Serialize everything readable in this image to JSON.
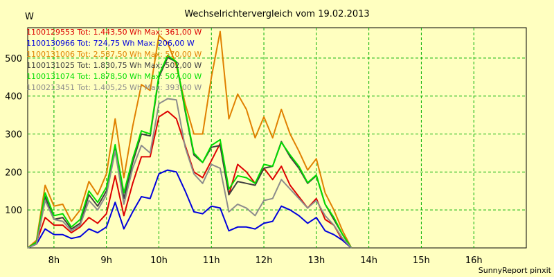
{
  "chart_data": {
    "type": "line",
    "title": "Wechselrichtervergleich vom 19.02.2013",
    "ylabel": "W",
    "xlabel": "",
    "x_range_hours": [
      7.5,
      17.0
    ],
    "ylim": [
      0,
      580
    ],
    "yticks": [
      100,
      200,
      300,
      400,
      500
    ],
    "xticks": [
      {
        "hour": 8,
        "label": "8h"
      },
      {
        "hour": 9,
        "label": "9h"
      },
      {
        "hour": 10,
        "label": "10h"
      },
      {
        "hour": 11,
        "label": "11h"
      },
      {
        "hour": 12,
        "label": "12h"
      },
      {
        "hour": 13,
        "label": "13h"
      },
      {
        "hour": 14,
        "label": "14h"
      },
      {
        "hour": 15,
        "label": "15h"
      },
      {
        "hour": 16,
        "label": "16h"
      }
    ],
    "grid": true,
    "x": [
      7.5,
      7.667,
      7.833,
      8.0,
      8.167,
      8.333,
      8.5,
      8.667,
      8.833,
      9.0,
      9.167,
      9.333,
      9.5,
      9.667,
      9.833,
      10.0,
      10.167,
      10.333,
      10.5,
      10.667,
      10.833,
      11.0,
      11.167,
      11.333,
      11.5,
      11.667,
      11.833,
      12.0,
      12.167,
      12.333,
      12.5,
      12.667,
      12.833,
      13.0,
      13.167,
      13.333,
      13.5,
      13.667,
      13.833,
      14.0,
      14.167,
      14.333,
      14.5,
      14.667,
      14.833,
      15.0,
      15.167,
      15.333,
      15.5,
      15.667,
      15.833,
      16.0,
      16.167,
      16.333,
      16.5,
      16.667,
      16.833,
      17.0
    ],
    "series": [
      {
        "name": "1100129553",
        "label": "1100129553 Tot: 1.443,50 Wh Max: 361,00 W",
        "color": "#dd0000",
        "values": [
          0,
          15,
          80,
          60,
          60,
          40,
          55,
          80,
          65,
          90,
          190,
          85,
          170,
          240,
          240,
          345,
          360,
          340,
          270,
          200,
          185,
          230,
          275,
          140,
          220,
          200,
          170,
          210,
          180,
          215,
          165,
          135,
          105,
          130,
          75,
          60,
          20,
          0,
          null,
          null,
          null,
          null,
          null,
          null,
          null,
          null,
          null,
          null,
          null,
          null,
          null,
          null,
          null,
          null,
          null,
          null,
          null,
          null
        ]
      },
      {
        "name": "1100130966",
        "label": "1100130966 Tot: 724,75 Wh Max: 206,00 W",
        "color": "#0000dd",
        "values": [
          0,
          10,
          50,
          35,
          35,
          25,
          30,
          50,
          40,
          55,
          120,
          50,
          95,
          135,
          130,
          195,
          205,
          200,
          150,
          95,
          90,
          110,
          105,
          45,
          55,
          55,
          50,
          65,
          70,
          110,
          100,
          85,
          65,
          80,
          45,
          35,
          20,
          0,
          null,
          null,
          null,
          null,
          null,
          null,
          null,
          null,
          null,
          null,
          null,
          null,
          null,
          null,
          null,
          null,
          null,
          null,
          null,
          null
        ]
      },
      {
        "name": "1100131006",
        "label": "1100131006 Tot: 2.587,50 Wh Max: 570,00 W",
        "color": "#e08000",
        "values": [
          0,
          20,
          165,
          110,
          115,
          70,
          100,
          175,
          140,
          195,
          340,
          185,
          320,
          430,
          415,
          560,
          540,
          480,
          380,
          300,
          300,
          450,
          570,
          340,
          405,
          365,
          290,
          345,
          290,
          365,
          300,
          255,
          205,
          235,
          145,
          100,
          45,
          0,
          null,
          null,
          null,
          null,
          null,
          null,
          null,
          null,
          null,
          null,
          null,
          null,
          null,
          null,
          null,
          null,
          null,
          null,
          null,
          null
        ]
      },
      {
        "name": "1100131025",
        "label": "1100131025 Tot: 1.830,75 Wh Max: 502,00 W",
        "color": "#404040",
        "values": [
          0,
          15,
          135,
          75,
          80,
          50,
          65,
          140,
          110,
          150,
          265,
          130,
          225,
          300,
          295,
          450,
          502,
          490,
          360,
          245,
          225,
          265,
          270,
          140,
          175,
          170,
          165,
          210,
          215,
          280,
          240,
          210,
          170,
          190,
          115,
          75,
          35,
          0,
          null,
          null,
          null,
          null,
          null,
          null,
          null,
          null,
          null,
          null,
          null,
          null,
          null,
          null,
          null,
          null,
          null,
          null,
          null,
          null
        ]
      },
      {
        "name": "1100131074",
        "label": "1100131074 Tot: 1.878,50 Wh Max: 507,00 W",
        "color": "#00dd00",
        "values": [
          0,
          15,
          145,
          85,
          90,
          55,
          75,
          150,
          120,
          160,
          272,
          145,
          235,
          308,
          300,
          455,
          507,
          490,
          365,
          250,
          225,
          270,
          285,
          155,
          190,
          185,
          170,
          220,
          215,
          278,
          245,
          215,
          172,
          192,
          115,
          80,
          35,
          0,
          null,
          null,
          null,
          null,
          null,
          null,
          null,
          null,
          null,
          null,
          null,
          null,
          null,
          null,
          null,
          null,
          null,
          null,
          null,
          null
        ]
      },
      {
        "name": "1100213451",
        "label": "1100213451 Tot: 1.405,25 Wh Max: 393,00 W",
        "color": "#8c8c8c",
        "values": [
          0,
          10,
          125,
          75,
          70,
          45,
          60,
          125,
          100,
          140,
          255,
          115,
          210,
          270,
          250,
          380,
          393,
          390,
          265,
          195,
          170,
          220,
          210,
          95,
          115,
          105,
          85,
          125,
          130,
          180,
          155,
          130,
          105,
          125,
          85,
          60,
          25,
          0,
          null,
          null,
          null,
          null,
          null,
          null,
          null,
          null,
          null,
          null,
          null,
          null,
          null,
          null,
          null,
          null,
          null,
          null,
          null,
          null
        ]
      }
    ],
    "credit": "SunnyReport pinxit"
  }
}
